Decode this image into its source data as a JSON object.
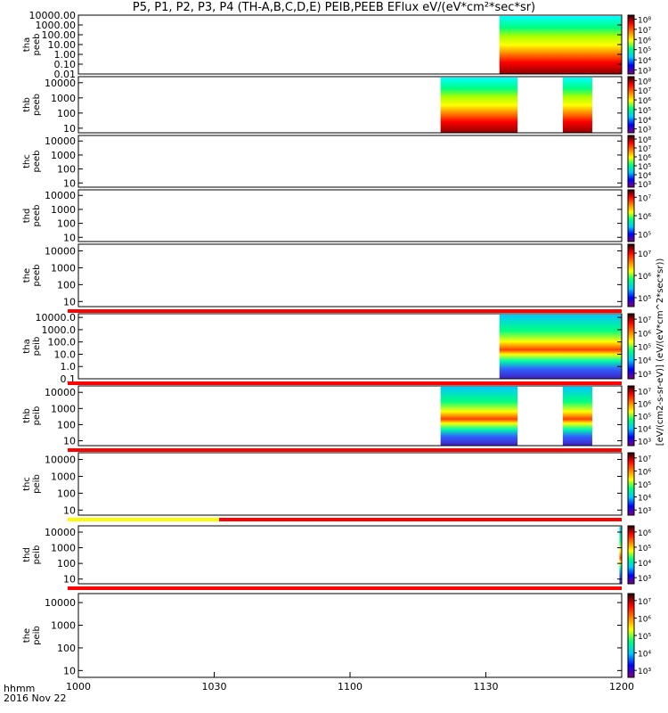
{
  "title": "P5, P1, P2, P3, P4 (TH-A,B,C,D,E) PEIB,PEEB EFlux eV/(eV*cm²*sec*sr)",
  "time_axis": {
    "label_line1": "hhmm",
    "label_line2": "2016 Nov 22",
    "ticks": [
      "1000",
      "1030",
      "1100",
      "1130",
      "1200"
    ],
    "tick_values": [
      0,
      30,
      60,
      90,
      120
    ],
    "range_minutes": [
      0,
      120
    ]
  },
  "colorbar_unit_label": "[eV/(cm2-s-sr-eV)] (eV/(eV*cm^2*sec*sr))",
  "colors": {
    "red_bar": "#ff0000",
    "yellow_bar": "#ffff00",
    "frame": "#000000"
  },
  "chart_data": {
    "type": "heatmap",
    "colormap": "rainbow (blue-cyan-green-yellow-red-darkred)",
    "panels": [
      {
        "id": "tha-peeb",
        "probe": "tha",
        "product": "peeb",
        "yticks": [
          "10000.00",
          "1000.00",
          "100.00",
          "10.00",
          "1.00",
          "0.10",
          "0.01"
        ],
        "ylim_log": [
          0.01,
          10000
        ],
        "ylog": true,
        "cb_ticks": [
          "10⁸",
          "10⁷",
          "10⁶",
          "10⁵",
          "10⁴",
          "10³"
        ],
        "data_intervals": [
          [
            93,
            120
          ]
        ],
        "flag_bar_after": null
      },
      {
        "id": "thb-peeb",
        "probe": "thb",
        "product": "peeb",
        "yticks": [
          "10000",
          "1000",
          "100",
          "10"
        ],
        "ylim_log": [
          5,
          25000
        ],
        "ylog": true,
        "cb_ticks": [
          "10⁸",
          "10⁷",
          "10⁶",
          "10⁵",
          "10⁴",
          "10³"
        ],
        "data_intervals": [
          [
            80,
            97
          ],
          [
            107,
            113.5
          ]
        ],
        "flag_bar_after": null
      },
      {
        "id": "thc-peeb",
        "probe": "thc",
        "product": "peeb",
        "yticks": [
          "10000",
          "1000",
          "100",
          "10"
        ],
        "ylim_log": [
          5,
          25000
        ],
        "ylog": true,
        "cb_ticks": [
          "10⁸",
          "10⁷",
          "10⁶",
          "10⁵",
          "10⁴",
          "10³"
        ],
        "data_intervals": [],
        "flag_bar_after": null
      },
      {
        "id": "thd-peeb",
        "probe": "thd",
        "product": "peeb",
        "yticks": [
          "10000",
          "1000",
          "100",
          "10"
        ],
        "ylim_log": [
          5,
          25000
        ],
        "ylog": true,
        "cb_ticks": [
          "10⁷",
          "10⁶",
          "10⁵"
        ],
        "data_intervals": [],
        "flag_bar_after": null
      },
      {
        "id": "the-peeb",
        "probe": "the",
        "product": "peeb",
        "yticks": [
          "10000",
          "1000",
          "100",
          "10"
        ],
        "ylim_log": [
          5,
          25000
        ],
        "ylog": true,
        "cb_ticks": [
          "10⁷",
          "10⁶",
          "10⁵"
        ],
        "data_intervals": [],
        "flag_bar_after": "red"
      },
      {
        "id": "tha-peib",
        "probe": "tha",
        "product": "peib",
        "yticks": [
          "10000.0",
          "1000.0",
          "100.0",
          "10.0",
          "1.0",
          "0.1"
        ],
        "ylim_log": [
          0.1,
          20000
        ],
        "ylog": true,
        "cb_ticks": [
          "10⁷",
          "10⁶",
          "10⁵",
          "10⁴",
          "10³"
        ],
        "data_intervals": [
          [
            93,
            120
          ]
        ],
        "flag_bar_after": "red"
      },
      {
        "id": "thb-peib",
        "probe": "thb",
        "product": "peib",
        "yticks": [
          "10000",
          "1000",
          "100",
          "10"
        ],
        "ylim_log": [
          5,
          25000
        ],
        "ylog": true,
        "cb_ticks": [
          "10⁷",
          "10⁶",
          "10⁵",
          "10⁴",
          "10³"
        ],
        "data_intervals": [
          [
            80,
            97
          ],
          [
            107,
            113.5
          ]
        ],
        "flag_bar_after": "red"
      },
      {
        "id": "thc-peib",
        "probe": "thc",
        "product": "peib",
        "yticks": [
          "10000",
          "1000",
          "100",
          "10"
        ],
        "ylim_log": [
          5,
          25000
        ],
        "ylog": true,
        "cb_ticks": [
          "10⁷",
          "10⁶",
          "10⁵",
          "10⁴",
          "10³"
        ],
        "data_intervals": [],
        "flag_bar_after": "yellow-red"
      },
      {
        "id": "thd-peib",
        "probe": "thd",
        "product": "peib",
        "yticks": [
          "10000",
          "1000",
          "100",
          "10"
        ],
        "ylim_log": [
          5,
          25000
        ],
        "ylog": true,
        "cb_ticks": [
          "10⁶",
          "10⁵",
          "10⁴",
          "10³"
        ],
        "data_intervals": [
          [
            119.5,
            120
          ]
        ],
        "flag_bar_after": "red"
      },
      {
        "id": "the-peib",
        "probe": "the",
        "product": "peib",
        "yticks": [
          "10000",
          "1000",
          "100",
          "10"
        ],
        "ylim_log": [
          5,
          25000
        ],
        "ylog": true,
        "cb_ticks": [
          "10⁷",
          "10⁶",
          "10⁵",
          "10⁴",
          "10³"
        ],
        "data_intervals": [],
        "flag_bar_after": null
      }
    ]
  }
}
